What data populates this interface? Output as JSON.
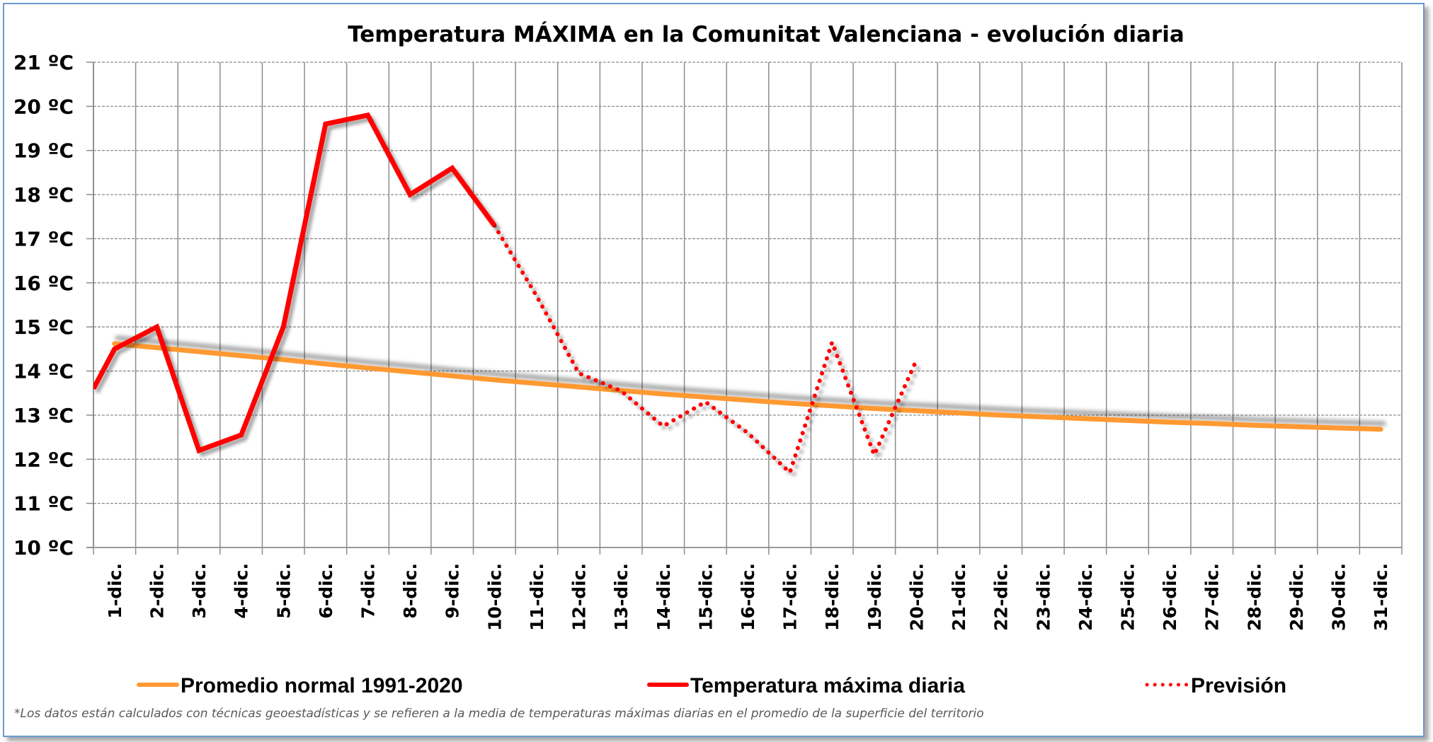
{
  "chart_data": {
    "type": "line",
    "title": "Temperatura MÁXIMA en la Comunitat Valenciana - evolución diaria",
    "xlabel": "",
    "ylabel": "",
    "ylim": [
      10,
      21
    ],
    "y_ticks": [
      "10 ºC",
      "11 ºC",
      "12 ºC",
      "13 ºC",
      "14 ºC",
      "15 ºC",
      "16 ºC",
      "17 ºC",
      "18 ºC",
      "19 ºC",
      "20 ºC",
      "21 ºC"
    ],
    "y_tick_values": [
      10,
      11,
      12,
      13,
      14,
      15,
      16,
      17,
      18,
      19,
      20,
      21
    ],
    "grid": true,
    "legend_position": "bottom",
    "categories": [
      "1-dic.",
      "2-dic.",
      "3-dic.",
      "4-dic.",
      "5-dic.",
      "6-dic.",
      "7-dic.",
      "8-dic.",
      "9-dic.",
      "10-dic.",
      "11-dic.",
      "12-dic.",
      "13-dic.",
      "14-dic.",
      "15-dic.",
      "16-dic.",
      "17-dic.",
      "18-dic.",
      "19-dic.",
      "20-dic.",
      "21-dic.",
      "22-dic.",
      "23-dic.",
      "24-dic.",
      "25-dic.",
      "26-dic.",
      "27-dic.",
      "28-dic.",
      "29-dic.",
      "30-dic.",
      "31-dic."
    ],
    "series": [
      {
        "name": "Promedio normal 1991-2020",
        "color": "#ff9933",
        "style": "solid",
        "values": [
          14.62,
          14.53,
          14.44,
          14.35,
          14.26,
          14.16,
          14.07,
          13.98,
          13.89,
          13.8,
          13.72,
          13.64,
          13.56,
          13.48,
          13.41,
          13.34,
          13.27,
          13.21,
          13.15,
          13.1,
          13.05,
          13.0,
          12.96,
          12.92,
          12.88,
          12.84,
          12.81,
          12.77,
          12.74,
          12.71,
          12.68
        ]
      },
      {
        "name": "Temperatura máxima diaria",
        "color": "#ff0000",
        "style": "solid",
        "start_value_at_axis": 13.6,
        "values": [
          14.5,
          15.0,
          12.2,
          12.55,
          15.0,
          19.6,
          19.8,
          18.0,
          18.6,
          17.3,
          null,
          null,
          null,
          null,
          null,
          null,
          null,
          null,
          null,
          null,
          null,
          null,
          null,
          null,
          null,
          null,
          null,
          null,
          null,
          null,
          null
        ]
      },
      {
        "name": "Previsión",
        "color": "#ff0000",
        "style": "dotted",
        "values": [
          null,
          null,
          null,
          null,
          null,
          null,
          null,
          null,
          null,
          17.3,
          15.7,
          13.95,
          13.55,
          12.75,
          13.3,
          12.6,
          11.7,
          14.65,
          12.1,
          14.25,
          null,
          null,
          null,
          null,
          null,
          null,
          null,
          null,
          null,
          null,
          null
        ]
      }
    ],
    "footnote": "*Los datos están calculados con técnicas geoestadísticas y se refieren a la media de temperaturas máximas diarias en el promedio de la superficie del territorio"
  }
}
